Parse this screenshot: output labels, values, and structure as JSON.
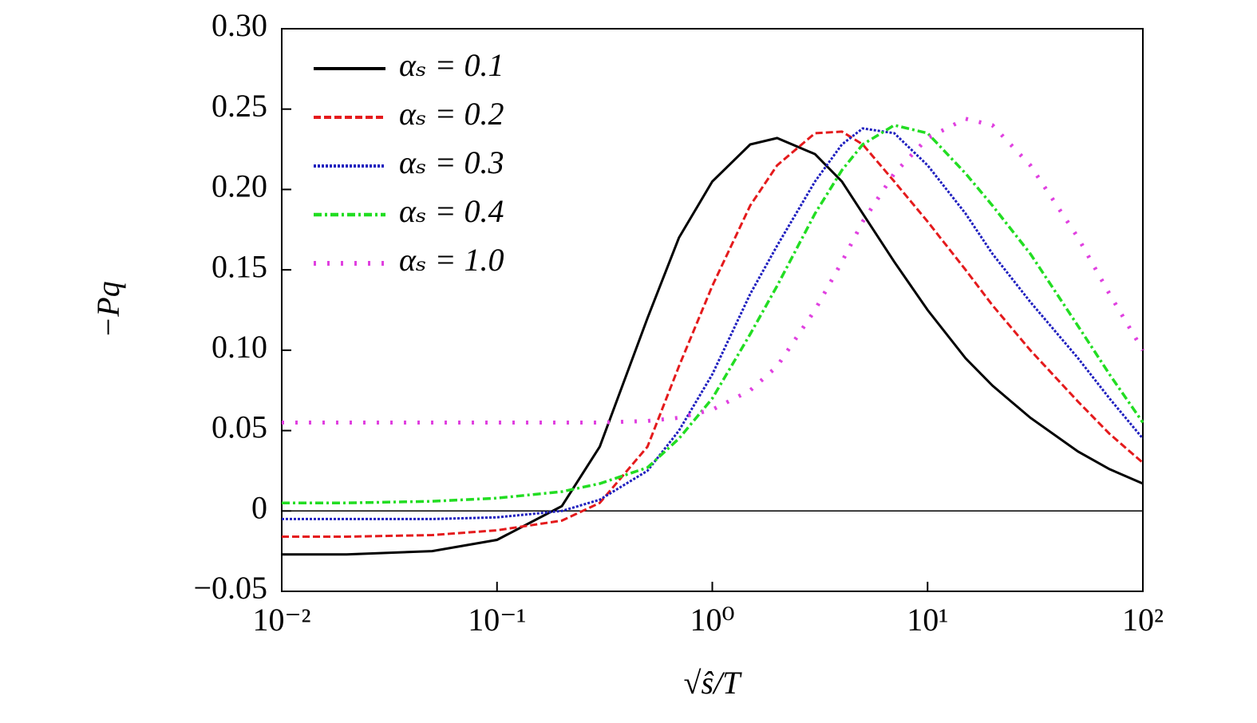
{
  "chart_data": {
    "type": "line",
    "xlabel": "√ŝ/T",
    "ylabel": "−Pq",
    "x": [
      0.01,
      0.02,
      0.05,
      0.1,
      0.2,
      0.3,
      0.5,
      0.7,
      1,
      1.5,
      2,
      3,
      4,
      5,
      7,
      10,
      15,
      20,
      30,
      50,
      70,
      100
    ],
    "series": [
      {
        "name": "αₛ = 0.1",
        "color": "#000000",
        "linestyle": "solid",
        "values": [
          -0.027,
          -0.027,
          -0.025,
          -0.018,
          0.003,
          0.04,
          0.12,
          0.17,
          0.205,
          0.228,
          0.232,
          0.222,
          0.205,
          0.185,
          0.155,
          0.125,
          0.095,
          0.078,
          0.058,
          0.037,
          0.026,
          0.017
        ]
      },
      {
        "name": "αₛ = 0.2",
        "color": "#e41a1c",
        "linestyle": "dashed",
        "values": [
          -0.016,
          -0.016,
          -0.015,
          -0.012,
          -0.006,
          0.005,
          0.04,
          0.09,
          0.14,
          0.19,
          0.215,
          0.235,
          0.236,
          0.228,
          0.205,
          0.18,
          0.15,
          0.128,
          0.1,
          0.068,
          0.048,
          0.03
        ]
      },
      {
        "name": "αₛ = 0.3",
        "color": "#1f1fbf",
        "linestyle": "dotted",
        "values": [
          -0.005,
          -0.005,
          -0.005,
          -0.004,
          0.0,
          0.007,
          0.025,
          0.05,
          0.085,
          0.135,
          0.165,
          0.205,
          0.228,
          0.238,
          0.235,
          0.215,
          0.185,
          0.16,
          0.13,
          0.095,
          0.07,
          0.045
        ]
      },
      {
        "name": "αₛ = 0.4",
        "color": "#22dd22",
        "linestyle": "dashdot",
        "values": [
          0.005,
          0.005,
          0.006,
          0.008,
          0.012,
          0.017,
          0.027,
          0.045,
          0.07,
          0.11,
          0.14,
          0.185,
          0.212,
          0.228,
          0.24,
          0.235,
          0.21,
          0.19,
          0.16,
          0.115,
          0.085,
          0.055
        ]
      },
      {
        "name": "αₛ = 1.0",
        "color": "#e040e0",
        "linestyle": "sparse-dotted",
        "values": [
          0.055,
          0.055,
          0.055,
          0.055,
          0.055,
          0.055,
          0.056,
          0.058,
          0.063,
          0.075,
          0.09,
          0.125,
          0.155,
          0.18,
          0.21,
          0.232,
          0.244,
          0.24,
          0.215,
          0.17,
          0.135,
          0.1
        ]
      }
    ],
    "xscale": "log",
    "xlim": [
      0.01,
      100
    ],
    "xticks": [
      {
        "value": 0.01,
        "label": "10⁻²"
      },
      {
        "value": 0.1,
        "label": "10⁻¹"
      },
      {
        "value": 1,
        "label": "10⁰"
      },
      {
        "value": 10,
        "label": "10¹"
      },
      {
        "value": 100,
        "label": "10²"
      }
    ],
    "ylim": [
      -0.05,
      0.3
    ],
    "yticks": [
      {
        "value": -0.05,
        "label": "−0.05"
      },
      0,
      0.05,
      {
        "value": 0.1,
        "label": "0.10"
      },
      0.15,
      {
        "value": 0.2,
        "label": "0.20"
      },
      0.25,
      {
        "value": 0.3,
        "label": "0.30"
      }
    ],
    "legend": "upper left",
    "zero_line": true
  }
}
